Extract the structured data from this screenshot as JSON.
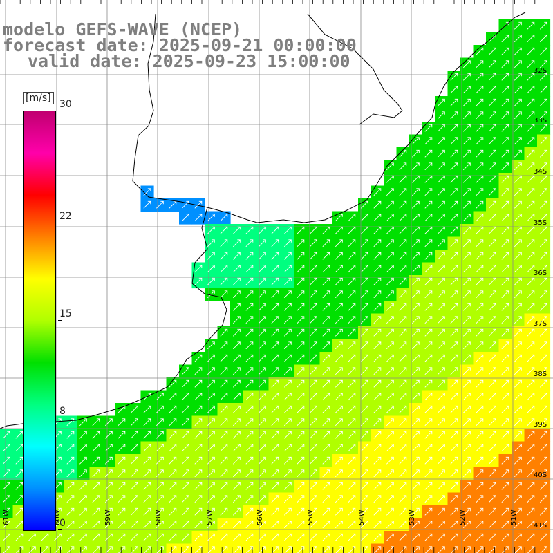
{
  "title": {
    "line1": "modelo GEFS-WAVE (NCEP)",
    "line2": "forecast date: 2025-09-21 00:00:00",
    "line3": "valid date: 2025-09-23 15:00:00"
  },
  "colorbar": {
    "unit": "[m/s]",
    "min": 0,
    "max": 30,
    "ticks": [
      {
        "value": 30,
        "label": "30"
      },
      {
        "value": 22,
        "label": "22"
      },
      {
        "value": 15,
        "label": "15"
      },
      {
        "value": 8,
        "label": "8"
      },
      {
        "value": 0,
        "label": "0"
      }
    ],
    "colors": [
      "#0000ff",
      "#0090ff",
      "#00ffff",
      "#00ff80",
      "#00e000",
      "#b0ff00",
      "#ffff00",
      "#ff8000",
      "#ff0000",
      "#ff00aa",
      "#c00070"
    ]
  },
  "map": {
    "lat_labels": [
      "32S",
      "33S",
      "34S",
      "35S",
      "36S",
      "37S",
      "38S",
      "39S",
      "40S",
      "41S"
    ],
    "lon_labels": [
      "61W",
      "60W",
      "59W",
      "58W",
      "57W",
      "56W",
      "55W",
      "54W",
      "53W",
      "52W",
      "51W"
    ],
    "grid": "on",
    "vectors": "wind arrows pointing north-east"
  }
}
